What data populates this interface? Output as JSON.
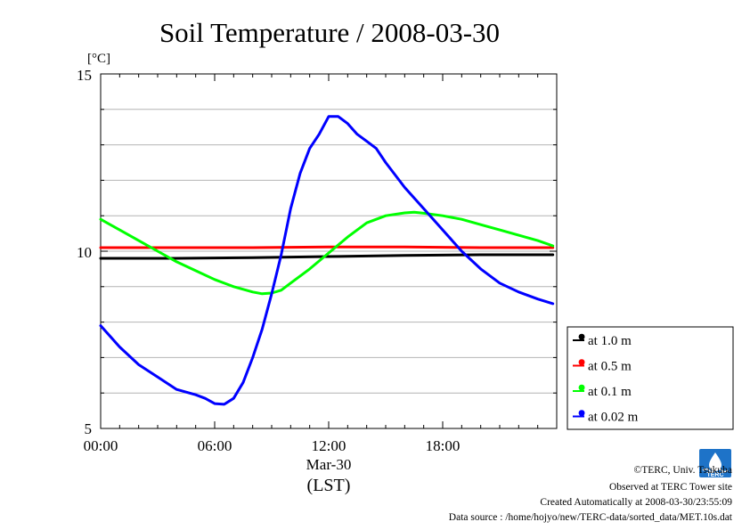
{
  "chart_data": {
    "type": "line",
    "title": "Soil Temperature / 2008-03-30",
    "ylabel": "[°C]",
    "ylim": [
      5,
      15
    ],
    "yticks": [
      5,
      10,
      15
    ],
    "ytick_labels": [
      "5",
      "10",
      "15"
    ],
    "xlim_hours": [
      0,
      24
    ],
    "xticks_hours": [
      0,
      6,
      12,
      18
    ],
    "xtick_labels": [
      "00:00",
      "06:00",
      "12:00",
      "18:00"
    ],
    "x_date_label": "Mar-30",
    "x_zone_label": "(LST)",
    "grid": true,
    "legend_position": "lower-right outside",
    "series": [
      {
        "name": "at 1.0 m",
        "color": "#000000",
        "x": [
          0,
          4,
          8,
          12,
          16,
          20,
          23.8
        ],
        "y": [
          9.8,
          9.8,
          9.82,
          9.85,
          9.88,
          9.9,
          9.9
        ]
      },
      {
        "name": "at 0.5 m",
        "color": "#ff0000",
        "x": [
          0,
          4,
          8,
          12,
          16,
          20,
          23.8
        ],
        "y": [
          10.1,
          10.1,
          10.1,
          10.12,
          10.12,
          10.1,
          10.1
        ]
      },
      {
        "name": "at 0.1 m",
        "color": "#00ff00",
        "x": [
          0,
          1,
          2,
          3,
          4,
          5,
          6,
          7,
          8,
          8.5,
          9,
          9.5,
          10,
          11,
          12,
          13,
          14,
          15,
          16,
          16.5,
          17,
          18,
          19,
          20,
          21,
          22,
          23,
          23.8
        ],
        "y": [
          10.9,
          10.6,
          10.3,
          10.0,
          9.7,
          9.45,
          9.2,
          9.0,
          8.85,
          8.8,
          8.82,
          8.9,
          9.1,
          9.5,
          9.95,
          10.4,
          10.8,
          11.0,
          11.08,
          11.1,
          11.07,
          11.0,
          10.9,
          10.75,
          10.6,
          10.45,
          10.3,
          10.15
        ]
      },
      {
        "name": "at 0.02 m",
        "color": "#0000ff",
        "x": [
          0,
          1,
          2,
          3,
          4,
          5,
          5.5,
          6,
          6.5,
          7,
          7.5,
          8,
          8.5,
          9,
          9.5,
          10,
          10.5,
          11,
          11.5,
          12,
          12.5,
          13,
          13.5,
          14,
          14.5,
          15,
          16,
          17,
          18,
          19,
          20,
          21,
          22,
          23,
          23.8
        ],
        "y": [
          7.9,
          7.3,
          6.8,
          6.45,
          6.1,
          5.95,
          5.85,
          5.7,
          5.68,
          5.85,
          6.3,
          7.0,
          7.8,
          8.8,
          9.9,
          11.2,
          12.2,
          12.9,
          13.3,
          13.8,
          13.8,
          13.6,
          13.3,
          13.1,
          12.9,
          12.5,
          11.8,
          11.2,
          10.6,
          10.0,
          9.5,
          9.1,
          8.85,
          8.65,
          8.52
        ]
      }
    ]
  },
  "credits": {
    "copyright": "©TERC, Univ. Tsukuba",
    "observed": "Observed at TERC Tower site",
    "created": "Created Automatically at 2008-03-30/23:55:09",
    "source": "Data source : /home/hojyo/new/TERC-data/sorted_data/MET.10s.dat",
    "logo_text": "TERC"
  }
}
